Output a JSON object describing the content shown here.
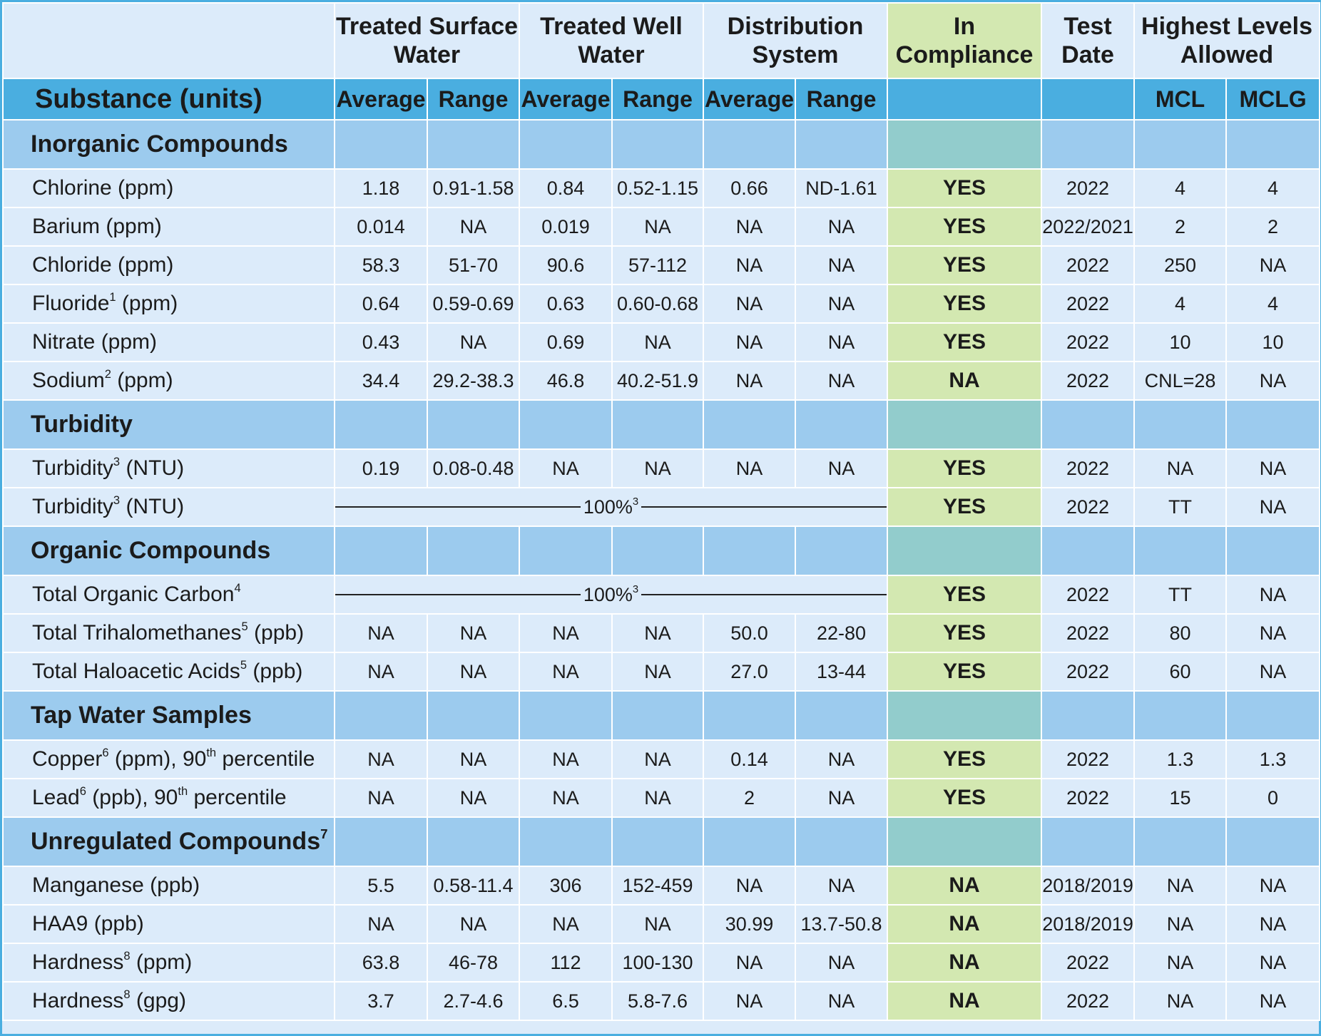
{
  "header": {
    "groups": [
      [
        "Treated Surface",
        "Water"
      ],
      [
        "Treated Well",
        "Water"
      ],
      [
        "Distribution",
        "System"
      ],
      [
        "In",
        "Compliance"
      ],
      [
        "Test",
        "Date"
      ],
      [
        "Highest Levels",
        "Allowed"
      ]
    ],
    "substance": "Substance (units)",
    "subheaders": [
      "Average",
      "Range",
      "Average",
      "Range",
      "Average",
      "Range",
      "MCL",
      "MCLG"
    ]
  },
  "sections": [
    {
      "title": [
        "Inorganic Compounds"
      ],
      "rows": [
        {
          "name": [
            "Chlorine (ppm)"
          ],
          "cells": [
            "1.18",
            "0.91-1.58",
            "0.84",
            "0.52-1.15",
            "0.66",
            "ND-1.61",
            "YES",
            "2022",
            "4",
            "4"
          ]
        },
        {
          "name": [
            "Barium (ppm)"
          ],
          "cells": [
            "0.014",
            "NA",
            "0.019",
            "NA",
            "NA",
            "NA",
            "YES",
            "2022/2021",
            "2",
            "2"
          ]
        },
        {
          "name": [
            "Chloride (ppm)"
          ],
          "cells": [
            "58.3",
            "51-70",
            "90.6",
            "57-112",
            "NA",
            "NA",
            "YES",
            "2022",
            "250",
            "NA"
          ]
        },
        {
          "name": [
            "Fluoride",
            "1",
            " (ppm)"
          ],
          "cells": [
            "0.64",
            "0.59-0.69",
            "0.63",
            "0.60-0.68",
            "NA",
            "NA",
            "YES",
            "2022",
            "4",
            "4"
          ]
        },
        {
          "name": [
            "Nitrate (ppm)"
          ],
          "cells": [
            "0.43",
            "NA",
            "0.69",
            "NA",
            "NA",
            "NA",
            "YES",
            "2022",
            "10",
            "10"
          ]
        },
        {
          "name": [
            "Sodium",
            "2",
            " (ppm)"
          ],
          "cells": [
            "34.4",
            "29.2-38.3",
            "46.8",
            "40.2-51.9",
            "NA",
            "NA",
            "NA",
            "2022",
            "CNL=28",
            "NA"
          ]
        }
      ]
    },
    {
      "title": [
        "Turbidity"
      ],
      "rows": [
        {
          "name": [
            "Turbidity",
            "3",
            " (NTU)"
          ],
          "cells": [
            "0.19",
            "0.08-0.48",
            "NA",
            "NA",
            "NA",
            "NA",
            "YES",
            "2022",
            "NA",
            "NA"
          ]
        },
        {
          "name": [
            "Turbidity",
            "3",
            " (NTU)"
          ],
          "merged": [
            "100%",
            "3"
          ],
          "cells": [
            "YES",
            "2022",
            "TT",
            "NA"
          ]
        }
      ]
    },
    {
      "title": [
        "Organic Compounds"
      ],
      "rows": [
        {
          "name": [
            "Total Organic Carbon",
            "4"
          ],
          "merged": [
            "100%",
            "3"
          ],
          "cells": [
            "YES",
            "2022",
            "TT",
            "NA"
          ]
        },
        {
          "name": [
            "Total Trihalomethanes",
            "5",
            " (ppb)"
          ],
          "cells": [
            "NA",
            "NA",
            "NA",
            "NA",
            "50.0",
            "22-80",
            "YES",
            "2022",
            "80",
            "NA"
          ]
        },
        {
          "name": [
            "Total Haloacetic Acids",
            "5",
            " (ppb)"
          ],
          "cells": [
            "NA",
            "NA",
            "NA",
            "NA",
            "27.0",
            "13-44",
            "YES",
            "2022",
            "60",
            "NA"
          ]
        }
      ]
    },
    {
      "title": [
        "Tap Water Samples"
      ],
      "rows": [
        {
          "name": [
            "Copper",
            "6",
            " (ppm), 90",
            "th",
            " percentile"
          ],
          "cells": [
            "NA",
            "NA",
            "NA",
            "NA",
            "0.14",
            "NA",
            "YES",
            "2022",
            "1.3",
            "1.3"
          ]
        },
        {
          "name": [
            "Lead",
            "6",
            " (ppb), 90",
            "th",
            " percentile"
          ],
          "cells": [
            "NA",
            "NA",
            "NA",
            "NA",
            "2",
            "NA",
            "YES",
            "2022",
            "15",
            "0"
          ]
        }
      ]
    },
    {
      "title": [
        "Unregulated Compounds",
        "7"
      ],
      "rows": [
        {
          "name": [
            "Manganese (ppb)"
          ],
          "cells": [
            "5.5",
            "0.58-11.4",
            "306",
            "152-459",
            "NA",
            "NA",
            "NA",
            "2018/2019",
            "NA",
            "NA"
          ]
        },
        {
          "name": [
            "HAA9  (ppb)"
          ],
          "cells": [
            "NA",
            "NA",
            "NA",
            "NA",
            "30.99",
            "13.7-50.8",
            "NA",
            "2018/2019",
            "NA",
            "NA"
          ]
        },
        {
          "name": [
            "Hardness",
            "8",
            " (ppm)"
          ],
          "cells": [
            "63.8",
            "46-78",
            "112",
            "100-130",
            "NA",
            "NA",
            "NA",
            "2022",
            "NA",
            "NA"
          ]
        },
        {
          "name": [
            "Hardness",
            "8",
            " (gpg)"
          ],
          "cells": [
            "3.7",
            "2.7-4.6",
            "6.5",
            "5.8-7.6",
            "NA",
            "NA",
            "NA",
            "2022",
            "NA",
            "NA"
          ]
        }
      ]
    }
  ]
}
